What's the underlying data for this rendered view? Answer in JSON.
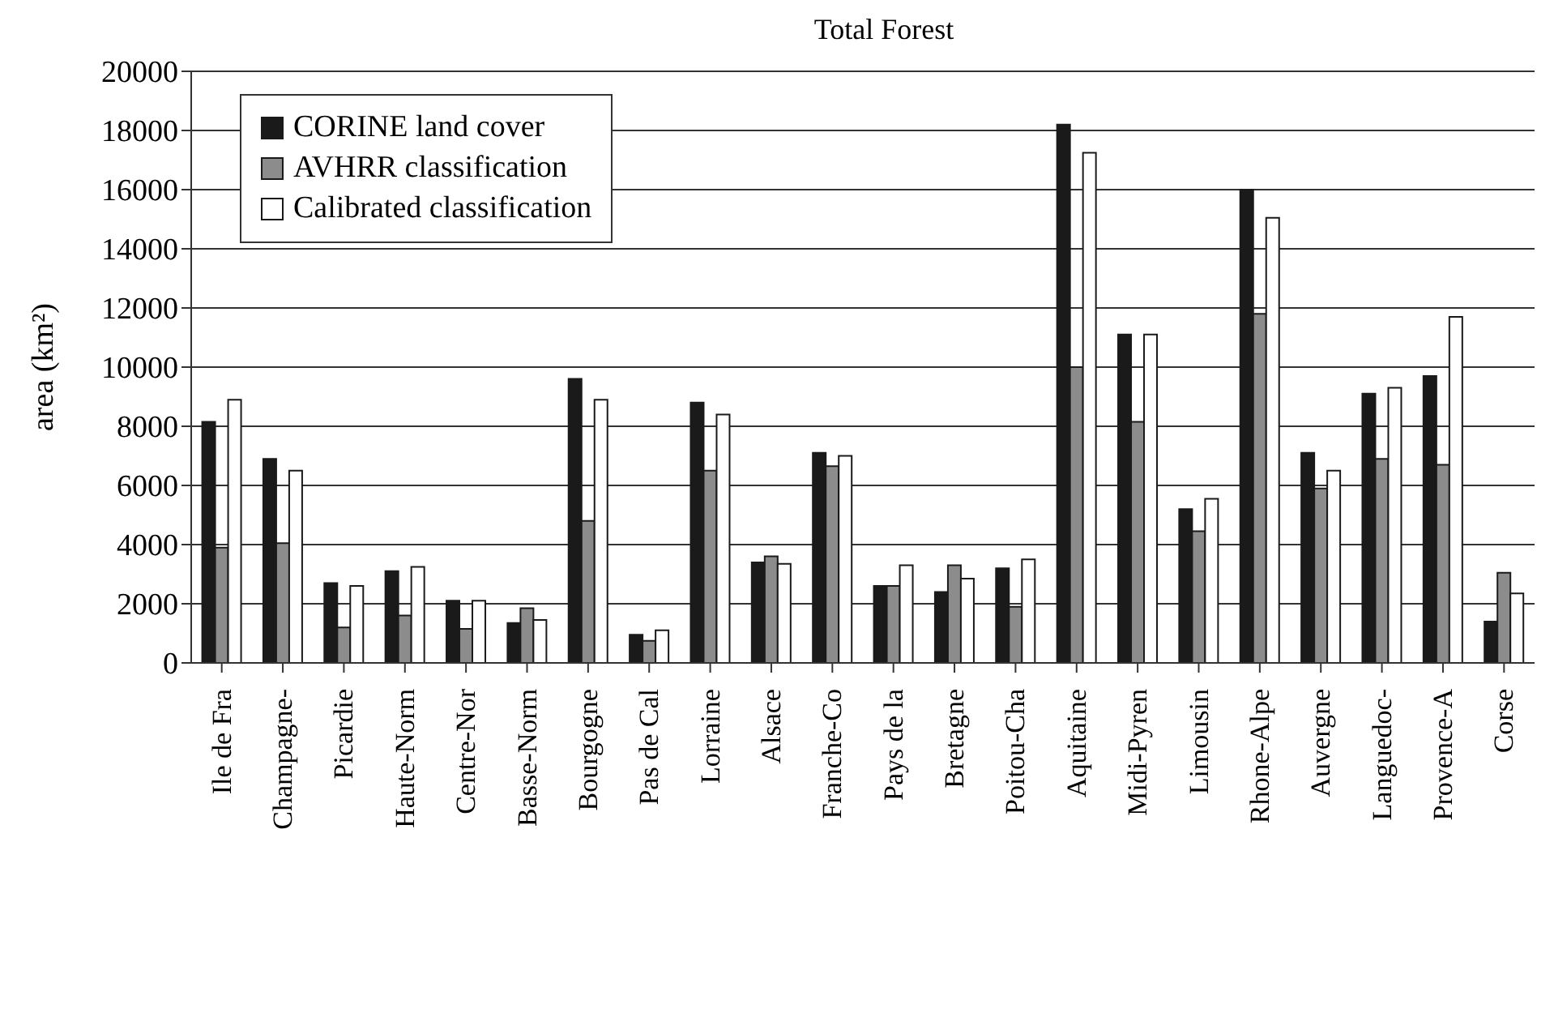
{
  "chart_data": {
    "type": "bar",
    "title": "Total Forest",
    "ylabel": "area (km²)",
    "categories": [
      "Ile de Fra",
      "Champagne-",
      "Picardie",
      "Haute-Norm",
      "Centre-Nor",
      "Basse-Norm",
      "Bourgogne",
      "Pas de Cal",
      "Lorraine",
      "Alsace",
      "Franche-Co",
      "Pays de la",
      "Bretagne",
      "Poitou-Cha",
      "Aquitaine",
      "Midi-Pyren",
      "Limousin",
      "Rhone-Alpe",
      "Auvergne",
      "Languedoc-",
      "Provence-A",
      "Corse"
    ],
    "series": [
      {
        "name": "CORINE land cover",
        "color": "#1a1a1a",
        "values": [
          8150,
          6900,
          2700,
          3100,
          2100,
          1350,
          9600,
          950,
          8800,
          3400,
          7100,
          2600,
          2400,
          3200,
          18200,
          11100,
          5200,
          16000,
          7100,
          9100,
          9700,
          1400
        ]
      },
      {
        "name": "AVHRR classification",
        "color": "#8c8c8c",
        "values": [
          3900,
          4050,
          1200,
          1600,
          1150,
          1850,
          4800,
          750,
          6500,
          3600,
          6650,
          2600,
          3300,
          1900,
          10000,
          8150,
          4450,
          11800,
          5900,
          6900,
          6700,
          3050
        ]
      },
      {
        "name": "Calibrated classification",
        "color": "#ffffff",
        "values": [
          8900,
          6500,
          2600,
          3250,
          2100,
          1450,
          8900,
          1100,
          8400,
          3350,
          7000,
          3300,
          2850,
          3500,
          17250,
          11100,
          5550,
          15050,
          6500,
          9300,
          11700,
          2350
        ]
      }
    ],
    "ylim": [
      0,
      20000
    ],
    "yticks": [
      0,
      2000,
      4000,
      6000,
      8000,
      10000,
      12000,
      14000,
      16000,
      18000,
      20000
    ],
    "grid": "y",
    "legend": "top left"
  }
}
